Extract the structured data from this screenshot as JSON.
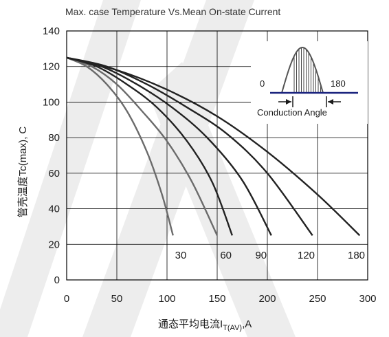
{
  "chart_data": {
    "type": "line",
    "title": "Max. case Temperature Vs.Mean On-state Current",
    "xlabel": "通态平均电流I",
    "xlabel_sub": "T(AV)",
    "xlabel_suffix": ",A",
    "ylabel": "管壳温度Tc(max), C",
    "xlim": [
      0,
      300
    ],
    "ylim": [
      0,
      140
    ],
    "xticks": [
      "0",
      "50",
      "100",
      "150",
      "200",
      "250",
      "300"
    ],
    "yticks": [
      "0",
      "20",
      "40",
      "60",
      "80",
      "100",
      "120",
      "140"
    ],
    "grid": true,
    "series": [
      {
        "name": "30",
        "color": "#6b6b6b",
        "x": [
          0,
          20,
          40,
          60,
          80,
          95,
          106
        ],
        "y": [
          125,
          120,
          110,
          95,
          72,
          48,
          25
        ]
      },
      {
        "name": "60",
        "color": "#6b6b6b",
        "x": [
          0,
          25,
          50,
          75,
          100,
          125,
          150
        ],
        "y": [
          125,
          120,
          110,
          95,
          78,
          55,
          25
        ]
      },
      {
        "name": "90",
        "color": "#222222",
        "x": [
          0,
          30,
          60,
          90,
          120,
          145,
          165
        ],
        "y": [
          125,
          120,
          110,
          97,
          78,
          55,
          25
        ]
      },
      {
        "name": "120",
        "color": "#222222",
        "x": [
          0,
          35,
          70,
          105,
          140,
          175,
          204
        ],
        "y": [
          125,
          120,
          110,
          97,
          80,
          56,
          25
        ]
      },
      {
        "name": "180",
        "color": "#222222",
        "x": [
          0,
          40,
          80,
          120,
          160,
          200,
          245
        ],
        "y": [
          125,
          120,
          110,
          97,
          82,
          60,
          25
        ]
      },
      {
        "name": "",
        "color": "#222222",
        "x": [
          0,
          50,
          100,
          150,
          200,
          250,
          292
        ],
        "y": [
          125,
          118,
          107,
          92,
          72,
          48,
          25
        ]
      }
    ],
    "curve_labels": [
      {
        "text": "30",
        "x": 100,
        "y": 12
      },
      {
        "text": "60",
        "x": 145,
        "y": 12
      },
      {
        "text": "90",
        "x": 180,
        "y": 12
      },
      {
        "text": "120",
        "x": 225,
        "y": 12
      },
      {
        "text": "180",
        "x": 275,
        "y": 12
      }
    ],
    "inset": {
      "left_label": "0",
      "right_label": "180",
      "caption": "Conduction Angle"
    }
  }
}
